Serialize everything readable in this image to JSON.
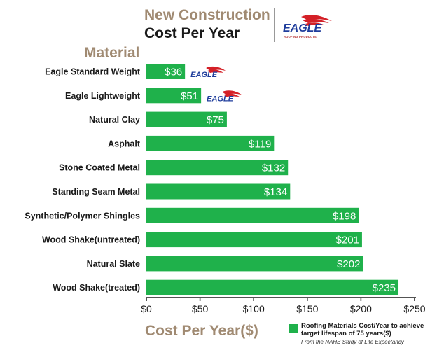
{
  "title": {
    "line1": "New Construction",
    "line2": "Cost Per Year"
  },
  "logo": {
    "text": "EAGLE",
    "subtext": "ROOFING PRODUCTS",
    "icon": "eagle-logo-icon",
    "colors": {
      "blue": "#1f3d9c",
      "red": "#d42027"
    }
  },
  "colors": {
    "bar": "#1fb14b",
    "header": "#a08a72",
    "axis": "#1a1a1a"
  },
  "chart_data": {
    "type": "bar",
    "orientation": "horizontal",
    "category_header": "Material",
    "categories": [
      "Eagle Standard Weight",
      "Eagle Lightweight",
      "Natural Clay",
      "Asphalt",
      "Stone Coated Metal",
      "Standing Seam Metal",
      "Synthetic/Polymer Shingles",
      "Wood Shake(untreated)",
      "Natural Slate",
      "Wood Shake(treated)"
    ],
    "values": [
      36,
      51,
      75,
      119,
      132,
      134,
      198,
      201,
      202,
      235
    ],
    "value_labels": [
      "$36",
      "$51",
      "$75",
      "$119",
      "$132",
      "$134",
      "$198",
      "$201",
      "$202",
      "$235"
    ],
    "logo_marked_categories": [
      "Eagle Standard Weight",
      "Eagle Lightweight"
    ],
    "xlabel": "Cost Per Year($)",
    "xlim": [
      0,
      250
    ],
    "xticks": [
      0,
      50,
      100,
      150,
      200,
      250
    ],
    "xtick_labels": [
      "$0",
      "$50",
      "$100",
      "$150",
      "$200",
      "$250"
    ],
    "grid": false,
    "legend": {
      "label": "Roofing Materials Cost/Year to achieve target lifespan of 75 years($)",
      "source": "From the NAHB Study of Life Expectancy",
      "placement": "bottom-right"
    }
  }
}
